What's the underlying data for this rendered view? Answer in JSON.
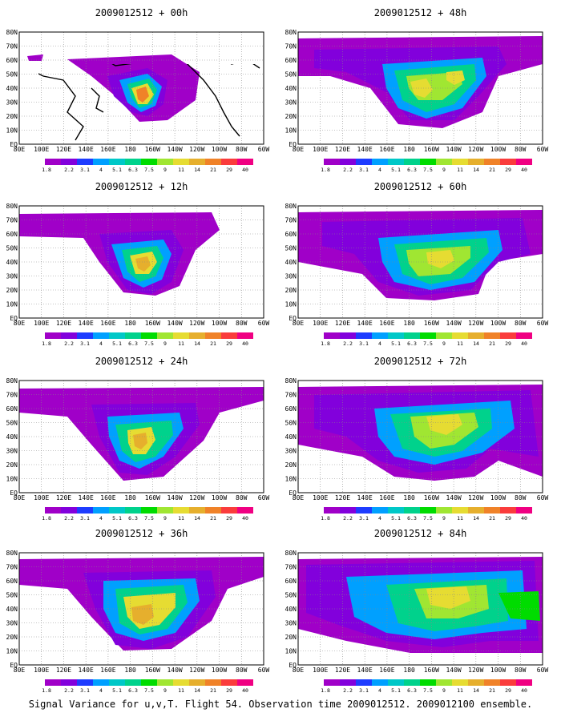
{
  "panels": [
    {
      "title": "2009012512 + 00h",
      "lead": "00h"
    },
    {
      "title": "2009012512 + 48h",
      "lead": "48h"
    },
    {
      "title": "2009012512 + 12h",
      "lead": "12h"
    },
    {
      "title": "2009012512 + 60h",
      "lead": "60h"
    },
    {
      "title": "2009012512 + 24h",
      "lead": "24h"
    },
    {
      "title": "2009012512 + 72h",
      "lead": "72h"
    },
    {
      "title": "2009012512 + 36h",
      "lead": "36h"
    },
    {
      "title": "2009012512 + 84h",
      "lead": "84h"
    }
  ],
  "lat_labels": [
    "80N",
    "70N",
    "60N",
    "50N",
    "40N",
    "30N",
    "20N",
    "10N",
    "EQ"
  ],
  "lon_labels": [
    "80E",
    "100E",
    "120E",
    "140E",
    "160E",
    "180",
    "160W",
    "140W",
    "120W",
    "100W",
    "80W",
    "60W"
  ],
  "colorbar": {
    "labels": [
      "1.8",
      "2.2",
      "3.1",
      "4",
      "5.1",
      "6.3",
      "7.5",
      "9",
      "11",
      "14",
      "21",
      "29",
      "40"
    ],
    "colors": [
      "#a000c8",
      "#8200dc",
      "#1e3cff",
      "#00a0ff",
      "#00c8c8",
      "#00d28c",
      "#00dc00",
      "#a0e632",
      "#e6dc32",
      "#e6af2d",
      "#f08228",
      "#fa3c3c",
      "#f00082"
    ]
  },
  "caption": "Signal Variance for u,v,T. Flight 54. Observation time 2009012512. 2009012100 ensemble."
}
